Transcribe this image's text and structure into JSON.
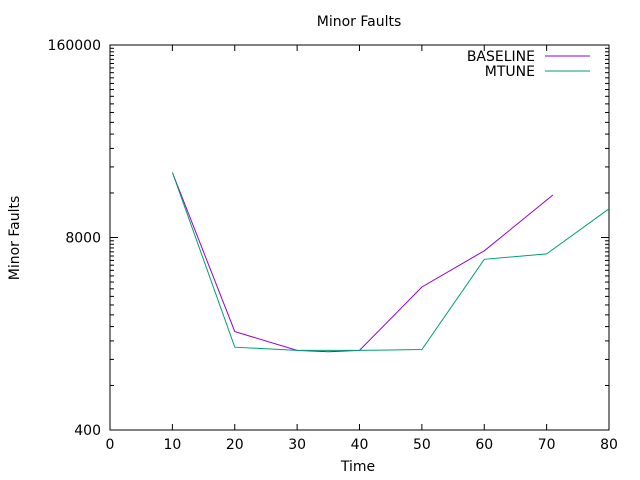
{
  "chart_data": {
    "type": "line",
    "title": "Minor Faults",
    "xlabel": "Time",
    "ylabel": "Minor Faults",
    "xlim": [
      0,
      80
    ],
    "ylim": [
      400,
      160000
    ],
    "yscale": "log",
    "x_ticks": [
      0,
      10,
      20,
      30,
      40,
      50,
      60,
      70,
      80
    ],
    "y_ticks": [
      400,
      8000,
      160000
    ],
    "grid": false,
    "legend_position": "top-right",
    "series": [
      {
        "name": "BASELINE",
        "color": "#9400d3",
        "x": [
          10,
          20,
          30,
          35,
          40,
          50,
          60,
          71
        ],
        "y": [
          22000,
          1850,
          1380,
          1350,
          1380,
          3700,
          6500,
          15500
        ]
      },
      {
        "name": "MTUNE",
        "color": "#009e73",
        "x": [
          10,
          20,
          30,
          40,
          50,
          60,
          70,
          80
        ],
        "y": [
          22000,
          1450,
          1380,
          1380,
          1400,
          5700,
          6200,
          12500
        ]
      }
    ]
  }
}
